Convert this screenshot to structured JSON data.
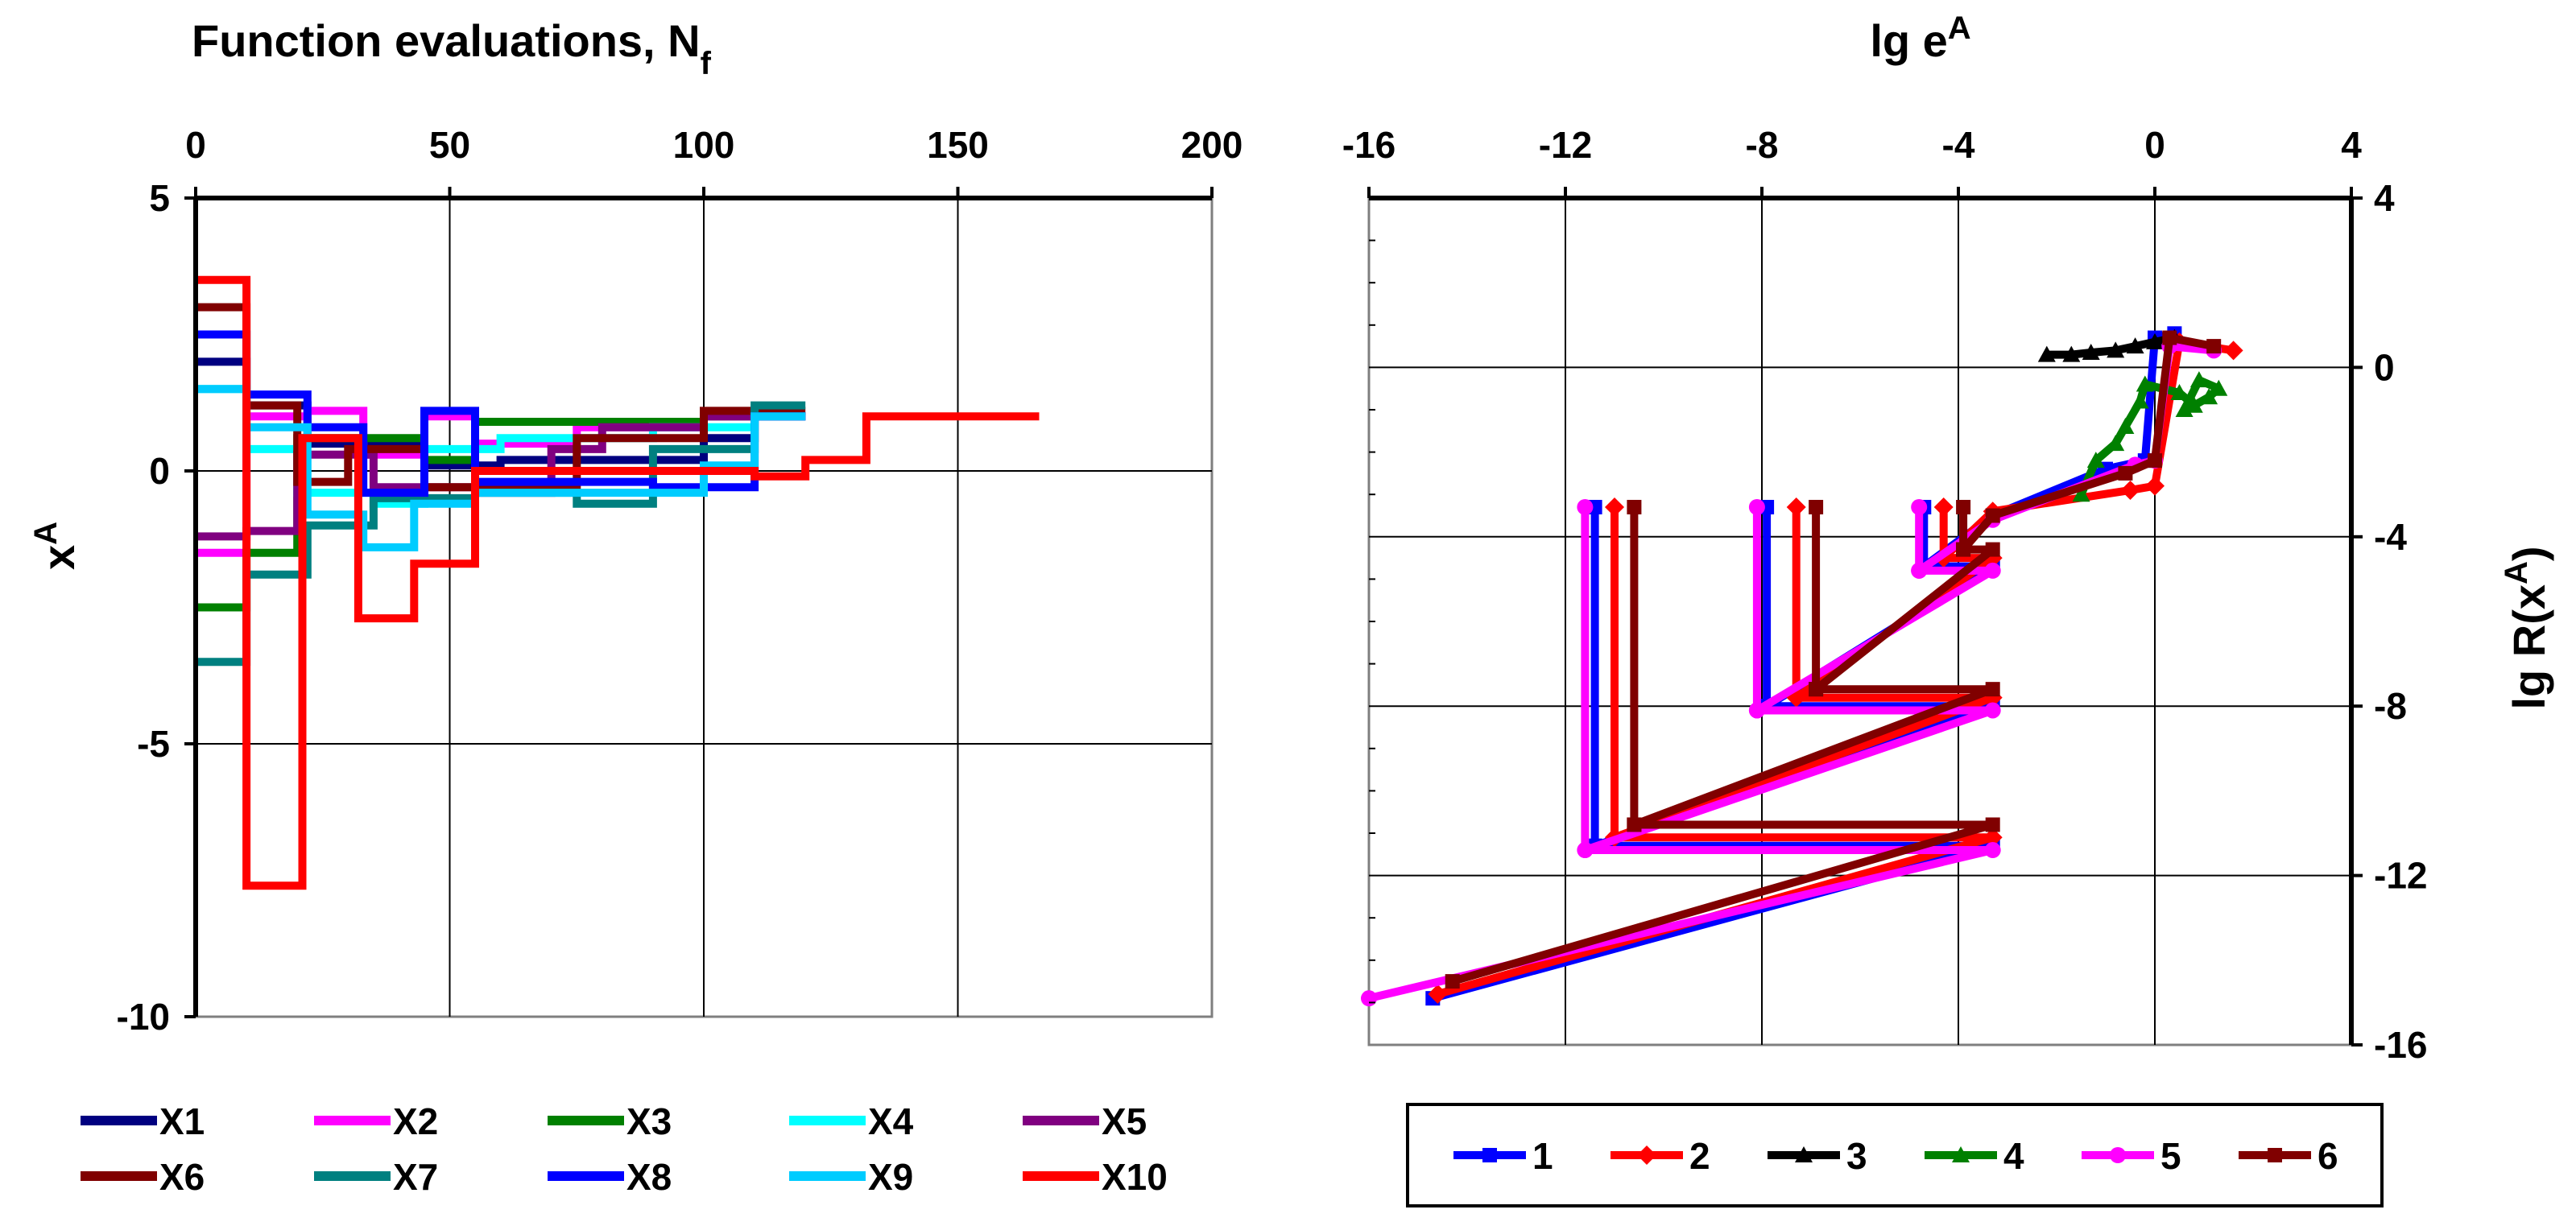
{
  "chart_data": [
    {
      "type": "line",
      "step": true,
      "title": "Function evaluations, N",
      "title_subscript": "f",
      "xlabel": "",
      "ylabel": "x",
      "ylabel_superscript": "A",
      "xlim": [
        0,
        200
      ],
      "ylim": [
        -10,
        5
      ],
      "x_ticks": [
        "0",
        "50",
        "100",
        "150",
        "200"
      ],
      "y_ticks": [
        "5",
        "0",
        "-5",
        "-10"
      ],
      "x_axis_position": "top",
      "grid": true,
      "legend_position": "bottom",
      "series": [
        {
          "name": "X1",
          "color": "#000080",
          "points": [
            [
              0,
              2
            ],
            [
              10,
              2
            ],
            [
              10,
              1.2
            ],
            [
              22,
              1.2
            ],
            [
              22,
              0.5
            ],
            [
              45,
              0.5
            ],
            [
              45,
              0.1
            ],
            [
              60,
              0.1
            ],
            [
              60,
              0.2
            ],
            [
              100,
              0.2
            ],
            [
              100,
              0.6
            ],
            [
              110,
              0.6
            ],
            [
              110,
              1
            ],
            [
              120,
              1
            ]
          ]
        },
        {
          "name": "X2",
          "color": "#ff00ff",
          "points": [
            [
              0,
              -1.5
            ],
            [
              10,
              -1.5
            ],
            [
              10,
              1
            ],
            [
              22,
              1
            ],
            [
              22,
              1.1
            ],
            [
              33,
              1.1
            ],
            [
              33,
              0.3
            ],
            [
              45,
              0.3
            ],
            [
              45,
              1
            ],
            [
              55,
              1
            ],
            [
              55,
              0.5
            ],
            [
              75,
              0.5
            ],
            [
              75,
              0.8
            ],
            [
              100,
              0.8
            ],
            [
              100,
              1
            ],
            [
              120,
              1
            ]
          ]
        },
        {
          "name": "X3",
          "color": "#008000",
          "points": [
            [
              0,
              -2.5
            ],
            [
              10,
              -2.5
            ],
            [
              10,
              -1.5
            ],
            [
              20,
              -1.5
            ],
            [
              20,
              0.6
            ],
            [
              45,
              0.6
            ],
            [
              45,
              0.2
            ],
            [
              55,
              0.2
            ],
            [
              55,
              0.9
            ],
            [
              100,
              0.9
            ],
            [
              100,
              1
            ],
            [
              120,
              1
            ]
          ]
        },
        {
          "name": "X4",
          "color": "#00ffff",
          "points": [
            [
              0,
              1.5
            ],
            [
              10,
              1.5
            ],
            [
              10,
              0.4
            ],
            [
              20,
              0.4
            ],
            [
              20,
              -0.4
            ],
            [
              35,
              -0.4
            ],
            [
              35,
              -0.6
            ],
            [
              45,
              -0.6
            ],
            [
              45,
              0.4
            ],
            [
              60,
              0.4
            ],
            [
              60,
              0.6
            ],
            [
              90,
              0.6
            ],
            [
              90,
              0.8
            ],
            [
              110,
              0.8
            ],
            [
              110,
              1
            ],
            [
              120,
              1
            ]
          ]
        },
        {
          "name": "X5",
          "color": "#800080",
          "points": [
            [
              0,
              -1.2
            ],
            [
              10,
              -1.2
            ],
            [
              10,
              -1.1
            ],
            [
              20,
              -1.1
            ],
            [
              20,
              0.3
            ],
            [
              35,
              0.3
            ],
            [
              35,
              -0.3
            ],
            [
              55,
              -0.3
            ],
            [
              55,
              -0.4
            ],
            [
              70,
              -0.4
            ],
            [
              70,
              0.4
            ],
            [
              80,
              0.4
            ],
            [
              80,
              0.8
            ],
            [
              100,
              0.8
            ],
            [
              100,
              1
            ],
            [
              120,
              1
            ]
          ]
        },
        {
          "name": "X6",
          "color": "#800000",
          "points": [
            [
              0,
              3
            ],
            [
              10,
              3
            ],
            [
              10,
              1.2
            ],
            [
              20,
              1.2
            ],
            [
              20,
              -0.2
            ],
            [
              30,
              -0.2
            ],
            [
              30,
              0.4
            ],
            [
              45,
              0.4
            ],
            [
              45,
              -0.3
            ],
            [
              75,
              -0.3
            ],
            [
              75,
              0.6
            ],
            [
              100,
              0.6
            ],
            [
              100,
              1.1
            ],
            [
              120,
              1.1
            ]
          ]
        },
        {
          "name": "X7",
          "color": "#008080",
          "points": [
            [
              0,
              -3.5
            ],
            [
              10,
              -3.5
            ],
            [
              10,
              -1.9
            ],
            [
              22,
              -1.9
            ],
            [
              22,
              -1
            ],
            [
              35,
              -1
            ],
            [
              35,
              -0.5
            ],
            [
              55,
              -0.5
            ],
            [
              55,
              -0.4
            ],
            [
              75,
              -0.4
            ],
            [
              75,
              -0.6
            ],
            [
              90,
              -0.6
            ],
            [
              90,
              0.4
            ],
            [
              110,
              0.4
            ],
            [
              110,
              1.2
            ],
            [
              120,
              1.2
            ]
          ]
        },
        {
          "name": "X8",
          "color": "#0000ff",
          "points": [
            [
              0,
              2.5
            ],
            [
              10,
              2.5
            ],
            [
              10,
              1.4
            ],
            [
              22,
              1.4
            ],
            [
              22,
              0.8
            ],
            [
              33,
              0.8
            ],
            [
              33,
              -0.4
            ],
            [
              45,
              -0.4
            ],
            [
              45,
              1.1
            ],
            [
              55,
              1.1
            ],
            [
              55,
              -0.2
            ],
            [
              90,
              -0.2
            ],
            [
              90,
              -0.3
            ],
            [
              110,
              -0.3
            ],
            [
              110,
              1
            ],
            [
              120,
              1
            ]
          ]
        },
        {
          "name": "X9",
          "color": "#00ccff",
          "points": [
            [
              0,
              1.5
            ],
            [
              10,
              1.5
            ],
            [
              10,
              0.8
            ],
            [
              22,
              0.8
            ],
            [
              22,
              -0.8
            ],
            [
              33,
              -0.8
            ],
            [
              33,
              -1.4
            ],
            [
              43,
              -1.4
            ],
            [
              43,
              -0.6
            ],
            [
              55,
              -0.6
            ],
            [
              55,
              -0.4
            ],
            [
              100,
              -0.4
            ],
            [
              100,
              0.1
            ],
            [
              110,
              0.1
            ],
            [
              110,
              1
            ],
            [
              120,
              1
            ]
          ]
        },
        {
          "name": "X10",
          "color": "#ff0000",
          "points": [
            [
              0,
              3.5
            ],
            [
              10,
              3.5
            ],
            [
              10,
              -7.6
            ],
            [
              21,
              -7.6
            ],
            [
              21,
              0.6
            ],
            [
              32,
              0.6
            ],
            [
              32,
              -2.7
            ],
            [
              43,
              -2.7
            ],
            [
              43,
              -1.7
            ],
            [
              55,
              -1.7
            ],
            [
              55,
              0
            ],
            [
              110,
              0
            ],
            [
              110,
              -0.1
            ],
            [
              120,
              -0.1
            ],
            [
              120,
              0.2
            ],
            [
              132,
              0.2
            ],
            [
              132,
              1
            ],
            [
              166,
              1
            ]
          ]
        }
      ]
    },
    {
      "type": "line",
      "title": "lg e",
      "title_superscript": "A",
      "xlabel": "",
      "ylabel": "lg R(x",
      "ylabel_superscript": "A",
      "ylabel_suffix": ")",
      "xlim": [
        -16,
        4
      ],
      "ylim": [
        -16,
        4
      ],
      "x_ticks": [
        "-16",
        "-12",
        "-8",
        "-4",
        "0",
        "4"
      ],
      "y_ticks": [
        "4",
        "0",
        "-4",
        "-8",
        "-12",
        "-16"
      ],
      "x_axis_position": "top",
      "y_axis_position": "right",
      "grid": true,
      "legend_position": "bottom",
      "series": [
        {
          "name": "1",
          "color": "#0000ff",
          "marker": "square",
          "points": [
            [
              -14.7,
              -14.9
            ],
            [
              -3.3,
              -11.3
            ],
            [
              -11.4,
              -11.3
            ],
            [
              -11.4,
              -3.3
            ],
            [
              -11.4,
              -11.3
            ],
            [
              -3.3,
              -8
            ],
            [
              -7.9,
              -8
            ],
            [
              -7.9,
              -3.3
            ],
            [
              -7.9,
              -8
            ],
            [
              -3.3,
              -4.7
            ],
            [
              -4.7,
              -4.7
            ],
            [
              -4.7,
              -3.3
            ],
            [
              -4.7,
              -4.7
            ],
            [
              -3.3,
              -3.5
            ],
            [
              -1,
              -2.4
            ],
            [
              -0.2,
              -2.2
            ],
            [
              0,
              0.7
            ],
            [
              0.4,
              0.8
            ]
          ]
        },
        {
          "name": "2",
          "color": "#ff0000",
          "marker": "diamond",
          "points": [
            [
              -14.6,
              -14.8
            ],
            [
              -3.3,
              -11.1
            ],
            [
              -11,
              -11.1
            ],
            [
              -11,
              -3.3
            ],
            [
              -11,
              -11.1
            ],
            [
              -3.3,
              -7.8
            ],
            [
              -7.3,
              -7.8
            ],
            [
              -7.3,
              -3.3
            ],
            [
              -7.3,
              -7.8
            ],
            [
              -3.3,
              -4.5
            ],
            [
              -4.3,
              -4.5
            ],
            [
              -4.3,
              -3.3
            ],
            [
              -4.3,
              -4.5
            ],
            [
              -3.3,
              -3.4
            ],
            [
              -0.5,
              -2.9
            ],
            [
              0,
              -2.8
            ],
            [
              0.5,
              0.6
            ],
            [
              1.6,
              0.4
            ]
          ]
        },
        {
          "name": "3",
          "color": "#000000",
          "marker": "triangle",
          "points": [
            [
              -2.2,
              0.3
            ],
            [
              -1.7,
              0.3
            ],
            [
              -1.3,
              0.35
            ],
            [
              -0.8,
              0.4
            ],
            [
              -0.4,
              0.5
            ],
            [
              0,
              0.6
            ],
            [
              0.4,
              0.7
            ]
          ]
        },
        {
          "name": "4",
          "color": "#008000",
          "marker": "triangle",
          "points": [
            [
              -1.5,
              -3
            ],
            [
              -1.2,
              -2.2
            ],
            [
              -0.8,
              -1.8
            ],
            [
              -0.6,
              -1.4
            ],
            [
              -0.3,
              -0.8
            ],
            [
              -0.2,
              -0.4
            ],
            [
              0.5,
              -0.6
            ],
            [
              0.8,
              -0.9
            ],
            [
              1.1,
              -0.7
            ],
            [
              1.3,
              -0.5
            ],
            [
              0.9,
              -0.3
            ],
            [
              0.6,
              -1
            ]
          ]
        },
        {
          "name": "5",
          "color": "#ff00ff",
          "marker": "circle",
          "points": [
            [
              -16,
              -14.9
            ],
            [
              -3.3,
              -11.4
            ],
            [
              -11.6,
              -11.4
            ],
            [
              -11.6,
              -3.3
            ],
            [
              -11.6,
              -11.4
            ],
            [
              -3.3,
              -8.1
            ],
            [
              -8.1,
              -8.1
            ],
            [
              -8.1,
              -3.3
            ],
            [
              -8.1,
              -8.1
            ],
            [
              -3.3,
              -4.8
            ],
            [
              -4.8,
              -4.8
            ],
            [
              -4.8,
              -3.3
            ],
            [
              -4.8,
              -4.8
            ],
            [
              -3.3,
              -3.6
            ],
            [
              -0.4,
              -2.3
            ],
            [
              0,
              -2.2
            ],
            [
              0.3,
              0.5
            ],
            [
              1.2,
              0.4
            ]
          ]
        },
        {
          "name": "6",
          "color": "#800000",
          "marker": "square",
          "points": [
            [
              -14.3,
              -14.5
            ],
            [
              -3.3,
              -10.8
            ],
            [
              -10.6,
              -10.8
            ],
            [
              -10.6,
              -3.3
            ],
            [
              -10.6,
              -10.8
            ],
            [
              -3.3,
              -7.6
            ],
            [
              -6.9,
              -7.6
            ],
            [
              -6.9,
              -3.3
            ],
            [
              -6.9,
              -7.6
            ],
            [
              -3.3,
              -4.3
            ],
            [
              -3.9,
              -4.3
            ],
            [
              -3.9,
              -3.3
            ],
            [
              -3.9,
              -4.3
            ],
            [
              -3.3,
              -3.5
            ],
            [
              -0.6,
              -2.5
            ],
            [
              0,
              -2.2
            ],
            [
              0.3,
              0.7
            ],
            [
              1.2,
              0.5
            ]
          ]
        }
      ]
    }
  ]
}
